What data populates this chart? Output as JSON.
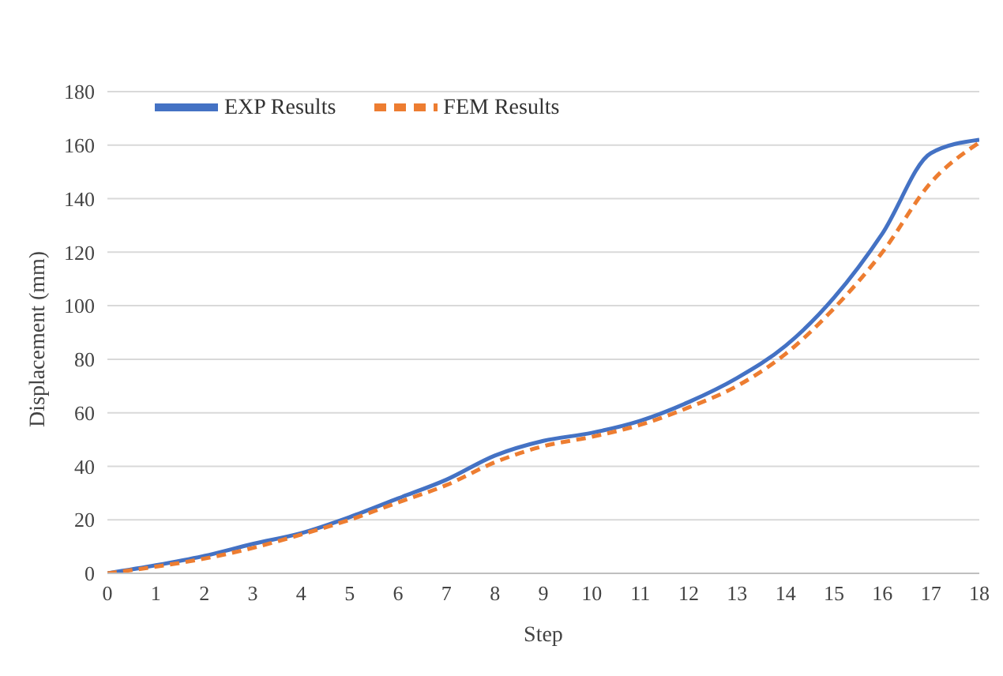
{
  "chart_data": {
    "type": "line",
    "xlabel": "Step",
    "ylabel": "Displacement (mm)",
    "x": [
      0,
      1,
      2,
      3,
      4,
      5,
      6,
      7,
      8,
      9,
      10,
      11,
      12,
      13,
      14,
      15,
      16,
      17,
      18
    ],
    "series": [
      {
        "name": "EXP Results",
        "color": "#4472c4",
        "line_style": "solid",
        "values": [
          0,
          3,
          6.5,
          11,
          15,
          21,
          28,
          35,
          44,
          49.5,
          52.5,
          57,
          64,
          73,
          85,
          103,
          127,
          157,
          162
        ]
      },
      {
        "name": "FEM Results",
        "color": "#ed7d31",
        "line_style": "dashed",
        "values": [
          0,
          2.5,
          5.5,
          9.5,
          14.5,
          20,
          26.5,
          33,
          41.5,
          47.5,
          51,
          55.5,
          62,
          70,
          82,
          99,
          120,
          146,
          161
        ]
      }
    ],
    "xlim": [
      0,
      18
    ],
    "xticks": [
      0,
      1,
      2,
      3,
      4,
      5,
      6,
      7,
      8,
      9,
      10,
      11,
      12,
      13,
      14,
      15,
      16,
      17,
      18
    ],
    "ylim": [
      0,
      180
    ],
    "yticks": [
      0,
      20,
      40,
      60,
      80,
      100,
      120,
      140,
      160,
      180
    ],
    "grid": "y",
    "legend": "top left",
    "marker": "none"
  }
}
